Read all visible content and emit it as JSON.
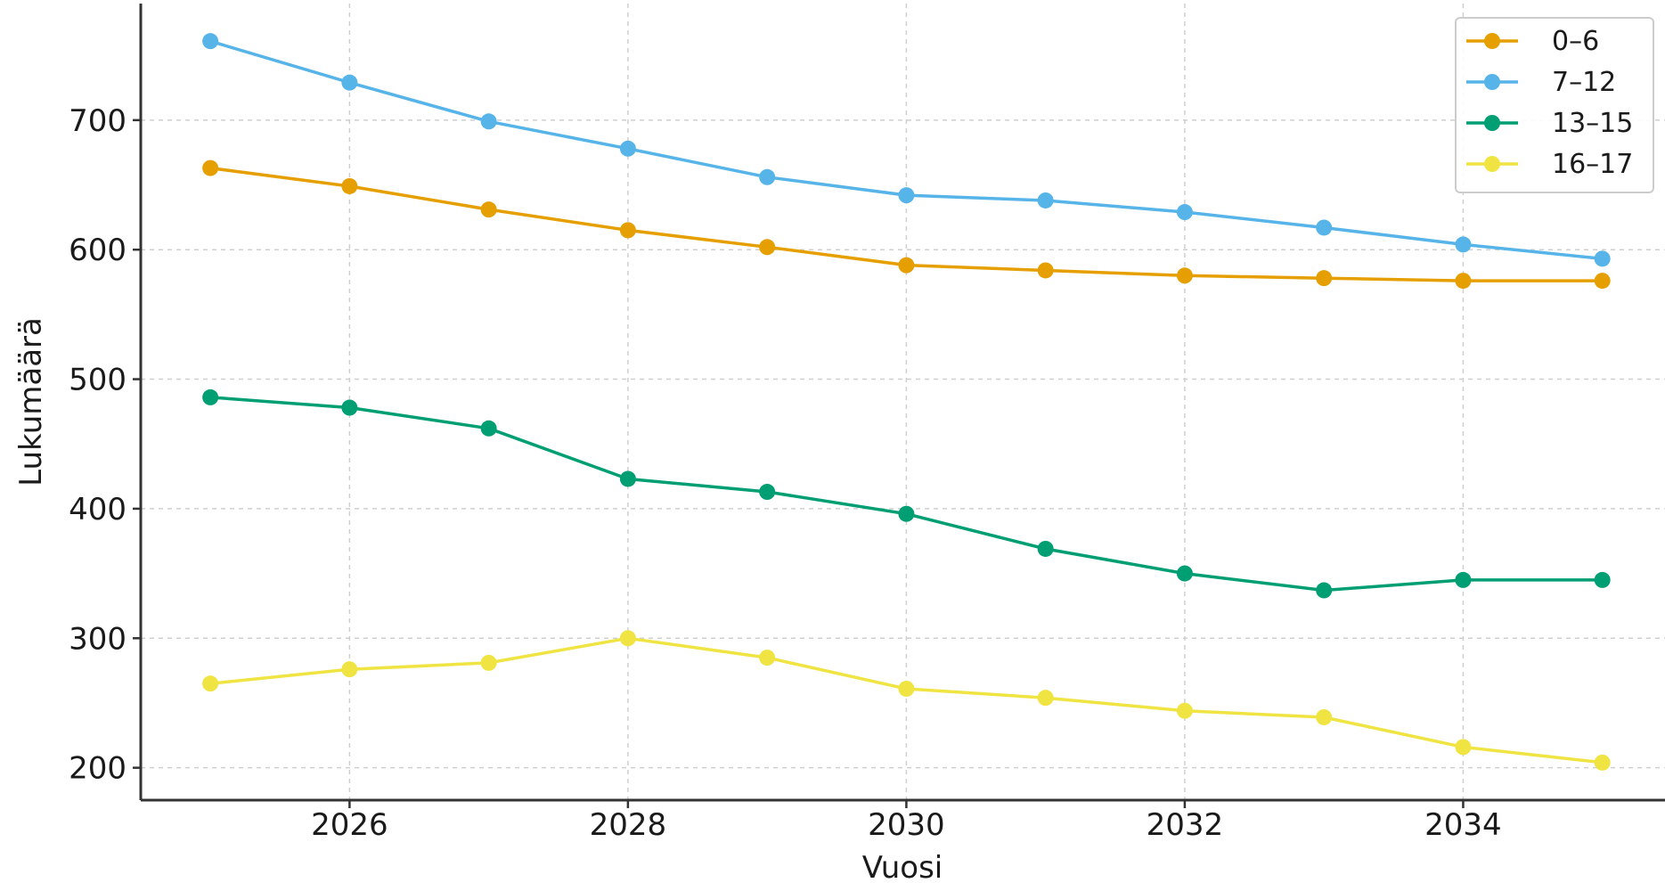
{
  "chart_data": {
    "type": "line",
    "title": "",
    "xlabel": "Vuosi",
    "ylabel": "Lukumäärä",
    "x": [
      2025,
      2026,
      2027,
      2028,
      2029,
      2030,
      2031,
      2032,
      2033,
      2034,
      2035
    ],
    "xlim": [
      2024.5,
      2035.45
    ],
    "ylim": [
      175,
      790
    ],
    "xticks": [
      2026,
      2028,
      2030,
      2032,
      2034
    ],
    "yticks": [
      200,
      300,
      400,
      500,
      600,
      700
    ],
    "grid": true,
    "legend_position": "top-right",
    "series": [
      {
        "name": "0–6",
        "color": "#E69F00",
        "values": [
          663,
          649,
          631,
          615,
          602,
          588,
          584,
          580,
          578,
          576,
          576
        ]
      },
      {
        "name": "7–12",
        "color": "#56B4E9",
        "values": [
          761,
          729,
          699,
          678,
          656,
          642,
          638,
          629,
          617,
          604,
          593
        ]
      },
      {
        "name": "13–15",
        "color": "#009E73",
        "values": [
          486,
          478,
          462,
          423,
          413,
          396,
          369,
          350,
          337,
          345,
          345
        ]
      },
      {
        "name": "16–17",
        "color": "#F0E442",
        "values": [
          265,
          276,
          281,
          300,
          285,
          261,
          254,
          244,
          239,
          216,
          204
        ]
      }
    ]
  }
}
